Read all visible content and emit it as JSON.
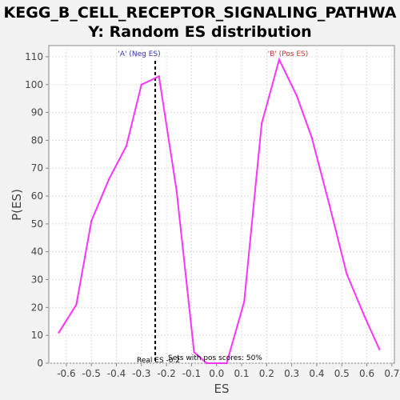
{
  "chart_data": {
    "type": "line",
    "title_line1": "KEGG_B_CELL_RECEPTOR_SIGNALING_PATHWA",
    "title_line2": "Y: Random ES distribution",
    "xlabel": "ES",
    "ylabel": "P(ES)",
    "xlim": [
      -0.67,
      0.71
    ],
    "ylim": [
      0,
      114
    ],
    "xticks": [
      -0.6,
      -0.5,
      -0.4,
      -0.3,
      -0.2,
      -0.1,
      0.0,
      0.1,
      0.2,
      0.3,
      0.4,
      0.5,
      0.6,
      0.7
    ],
    "xtick_labels": [
      "-0.6",
      "-0.5",
      "-0.4",
      "-0.3",
      "-0.2",
      "-0.1",
      "0.0",
      "0.1",
      "0.2",
      "0.3",
      "0.4",
      "0.5",
      "0.6",
      "0.7"
    ],
    "yticks": [
      0,
      10,
      20,
      30,
      40,
      50,
      60,
      70,
      80,
      90,
      100,
      110
    ],
    "ytick_labels": [
      "0",
      "10",
      "20",
      "30",
      "40",
      "50",
      "60",
      "70",
      "80",
      "90",
      "100",
      "110"
    ],
    "grid": true,
    "series": [
      {
        "color": "#ff33ff",
        "x": [
          -0.63,
          -0.56,
          -0.5,
          -0.43,
          -0.36,
          -0.3,
          -0.23,
          -0.16,
          -0.09,
          -0.04,
          0.04,
          0.11,
          0.18,
          0.25,
          0.32,
          0.38,
          0.45,
          0.52,
          0.59,
          0.65
        ],
        "y": [
          11,
          21,
          51,
          66,
          78,
          100,
          103,
          62,
          4,
          0,
          0,
          22,
          86,
          109,
          96,
          81,
          57,
          32,
          17,
          5
        ]
      }
    ],
    "real_es_line": {
      "x": -0.245,
      "color": "#000000"
    },
    "annotations": {
      "neg_label": "'A' (Neg ES)",
      "neg_color": "#3333aa",
      "pos_label": "'B' (Pos ES)",
      "pos_color": "#cc3333",
      "real_es_text": "Real ES -0.2",
      "sets_text": "Sets with pos scores: 50%"
    },
    "colors": {
      "plot_background": "#ffffff",
      "grid": "#dcdcdc",
      "axis": "#888888"
    }
  }
}
